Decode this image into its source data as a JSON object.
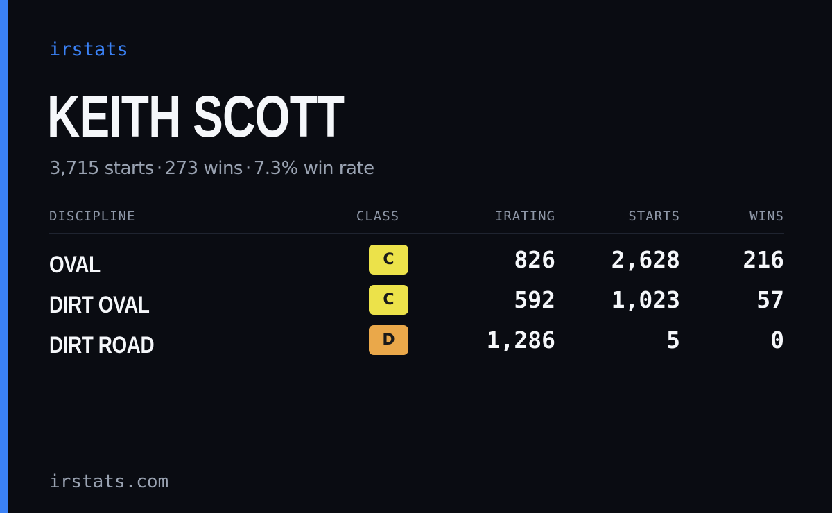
{
  "brand": "irstats",
  "driver": {
    "name": "KEITH SCOTT",
    "starts": "3,715 starts",
    "wins": "273 wins",
    "win_rate": "7.3% win rate",
    "separator": "·"
  },
  "table": {
    "headers": {
      "discipline": "DISCIPLINE",
      "class": "CLASS",
      "irating": "IRATING",
      "starts": "STARTS",
      "wins": "WINS"
    },
    "rows": [
      {
        "discipline": "OVAL",
        "class": "C",
        "class_color": "#ece24a",
        "irating": "826",
        "starts": "2,628",
        "wins": "216"
      },
      {
        "discipline": "DIRT OVAL",
        "class": "C",
        "class_color": "#ece24a",
        "irating": "592",
        "starts": "1,023",
        "wins": "57"
      },
      {
        "discipline": "DIRT ROAD",
        "class": "D",
        "class_color": "#eaa84a",
        "irating": "1,286",
        "starts": "5",
        "wins": "0"
      }
    ]
  },
  "footer": "irstats.com",
  "colors": {
    "accent": "#3b82f6",
    "background": "#0a0c12",
    "class_c": "#ece24a",
    "class_d": "#eaa84a"
  }
}
